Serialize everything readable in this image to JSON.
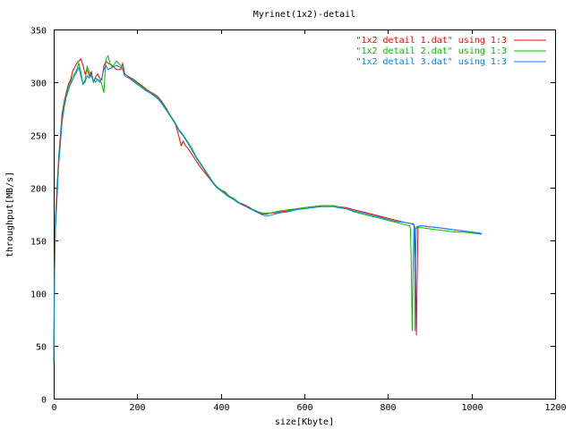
{
  "chart_data": {
    "type": "line",
    "title": "Myrinet(1x2)-detail",
    "xlabel": "size[Kbyte]",
    "ylabel": "throughput[MB/s]",
    "xlim": [
      0,
      1200
    ],
    "ylim": [
      0,
      350
    ],
    "xticks": [
      0,
      200,
      400,
      600,
      800,
      1000,
      1200
    ],
    "yticks": [
      0,
      50,
      100,
      150,
      200,
      250,
      300,
      350
    ],
    "grid": false,
    "legend_position": "top-right",
    "series": [
      {
        "name": "\"1x2 detail 1.dat\" using 1:3",
        "color": "#ff0000",
        "points": [
          [
            0,
            33
          ],
          [
            2,
            130
          ],
          [
            4,
            172
          ],
          [
            8,
            200
          ],
          [
            12,
            230
          ],
          [
            16,
            250
          ],
          [
            20,
            270
          ],
          [
            25,
            282
          ],
          [
            30,
            290
          ],
          [
            35,
            298
          ],
          [
            40,
            302
          ],
          [
            45,
            310
          ],
          [
            50,
            314
          ],
          [
            55,
            318
          ],
          [
            60,
            320
          ],
          [
            65,
            322
          ],
          [
            70,
            316
          ],
          [
            75,
            308
          ],
          [
            80,
            312
          ],
          [
            85,
            306
          ],
          [
            90,
            310
          ],
          [
            95,
            300
          ],
          [
            100,
            305
          ],
          [
            105,
            308
          ],
          [
            110,
            304
          ],
          [
            115,
            302
          ],
          [
            120,
            315
          ],
          [
            125,
            320
          ],
          [
            130,
            318
          ],
          [
            140,
            316
          ],
          [
            150,
            312
          ],
          [
            160,
            312
          ],
          [
            165,
            318
          ],
          [
            170,
            308
          ],
          [
            180,
            305
          ],
          [
            190,
            303
          ],
          [
            200,
            300
          ],
          [
            210,
            297
          ],
          [
            220,
            294
          ],
          [
            230,
            291
          ],
          [
            240,
            289
          ],
          [
            250,
            286
          ],
          [
            260,
            281
          ],
          [
            270,
            275
          ],
          [
            280,
            268
          ],
          [
            290,
            262
          ],
          [
            295,
            255
          ],
          [
            300,
            248
          ],
          [
            305,
            240
          ],
          [
            310,
            244
          ],
          [
            315,
            240
          ],
          [
            320,
            238
          ],
          [
            330,
            232
          ],
          [
            340,
            226
          ],
          [
            350,
            220
          ],
          [
            360,
            215
          ],
          [
            370,
            210
          ],
          [
            380,
            205
          ],
          [
            390,
            201
          ],
          [
            400,
            198
          ],
          [
            410,
            196
          ],
          [
            420,
            192
          ],
          [
            430,
            189
          ],
          [
            440,
            186
          ],
          [
            450,
            185
          ],
          [
            460,
            183
          ],
          [
            470,
            181
          ],
          [
            480,
            178
          ],
          [
            490,
            177
          ],
          [
            500,
            175
          ],
          [
            510,
            175
          ],
          [
            520,
            176
          ],
          [
            530,
            176
          ],
          [
            540,
            177
          ],
          [
            560,
            178
          ],
          [
            580,
            180
          ],
          [
            600,
            181
          ],
          [
            620,
            182
          ],
          [
            640,
            183
          ],
          [
            660,
            183
          ],
          [
            670,
            183
          ],
          [
            680,
            182
          ],
          [
            700,
            181
          ],
          [
            720,
            179
          ],
          [
            740,
            177
          ],
          [
            760,
            175
          ],
          [
            780,
            173
          ],
          [
            800,
            171
          ],
          [
            820,
            169
          ],
          [
            840,
            167
          ],
          [
            855,
            166
          ],
          [
            860,
            165
          ],
          [
            862,
            165
          ],
          [
            864,
            162
          ],
          [
            866,
            125
          ],
          [
            868,
            60
          ],
          [
            870,
            120
          ],
          [
            872,
            163
          ],
          [
            880,
            164
          ],
          [
            900,
            163
          ],
          [
            920,
            162
          ],
          [
            940,
            161
          ],
          [
            960,
            160
          ],
          [
            980,
            159
          ],
          [
            1000,
            158
          ],
          [
            1020,
            157
          ],
          [
            1025,
            156
          ]
        ]
      },
      {
        "name": "\"1x2 detail 2.dat\" using 1:3",
        "color": "#00c000",
        "points": [
          [
            0,
            33
          ],
          [
            2,
            120
          ],
          [
            4,
            165
          ],
          [
            8,
            195
          ],
          [
            12,
            225
          ],
          [
            16,
            245
          ],
          [
            20,
            265
          ],
          [
            25,
            280
          ],
          [
            30,
            288
          ],
          [
            35,
            295
          ],
          [
            40,
            300
          ],
          [
            45,
            305
          ],
          [
            50,
            308
          ],
          [
            55,
            312
          ],
          [
            60,
            318
          ],
          [
            65,
            310
          ],
          [
            70,
            298
          ],
          [
            75,
            302
          ],
          [
            80,
            315
          ],
          [
            85,
            310
          ],
          [
            90,
            305
          ],
          [
            95,
            302
          ],
          [
            100,
            300
          ],
          [
            105,
            303
          ],
          [
            110,
            302
          ],
          [
            115,
            298
          ],
          [
            120,
            290
          ],
          [
            125,
            322
          ],
          [
            130,
            325
          ],
          [
            135,
            318
          ],
          [
            140,
            314
          ],
          [
            150,
            320
          ],
          [
            160,
            316
          ],
          [
            165,
            314
          ],
          [
            170,
            306
          ],
          [
            180,
            304
          ],
          [
            190,
            302
          ],
          [
            200,
            299
          ],
          [
            210,
            296
          ],
          [
            220,
            293
          ],
          [
            230,
            290
          ],
          [
            240,
            288
          ],
          [
            250,
            285
          ],
          [
            260,
            280
          ],
          [
            270,
            274
          ],
          [
            280,
            268
          ],
          [
            290,
            262
          ],
          [
            300,
            255
          ],
          [
            310,
            250
          ],
          [
            320,
            244
          ],
          [
            330,
            238
          ],
          [
            340,
            230
          ],
          [
            350,
            224
          ],
          [
            360,
            218
          ],
          [
            370,
            212
          ],
          [
            380,
            206
          ],
          [
            390,
            201
          ],
          [
            400,
            198
          ],
          [
            410,
            195
          ],
          [
            420,
            192
          ],
          [
            430,
            190
          ],
          [
            440,
            187
          ],
          [
            450,
            184
          ],
          [
            460,
            182
          ],
          [
            470,
            180
          ],
          [
            480,
            179
          ],
          [
            490,
            177
          ],
          [
            500,
            176
          ],
          [
            510,
            176
          ],
          [
            520,
            176
          ],
          [
            530,
            177
          ],
          [
            540,
            178
          ],
          [
            560,
            179
          ],
          [
            580,
            180
          ],
          [
            600,
            181
          ],
          [
            620,
            182
          ],
          [
            640,
            183
          ],
          [
            660,
            183
          ],
          [
            670,
            183
          ],
          [
            680,
            182
          ],
          [
            700,
            180
          ],
          [
            720,
            177
          ],
          [
            740,
            175
          ],
          [
            760,
            173
          ],
          [
            780,
            171
          ],
          [
            800,
            169
          ],
          [
            820,
            167
          ],
          [
            840,
            165
          ],
          [
            850,
            164
          ],
          [
            852,
            164
          ],
          [
            854,
            160
          ],
          [
            856,
            120
          ],
          [
            858,
            64
          ],
          [
            860,
            118
          ],
          [
            862,
            160
          ],
          [
            870,
            162
          ],
          [
            880,
            162
          ],
          [
            900,
            161
          ],
          [
            920,
            160
          ],
          [
            940,
            159
          ],
          [
            960,
            158
          ],
          [
            980,
            158
          ],
          [
            1000,
            157
          ],
          [
            1020,
            156
          ],
          [
            1025,
            156
          ]
        ]
      },
      {
        "name": "\"1x2 detail 3.dat\" using 1:3",
        "color": "#0080ff",
        "points": [
          [
            0,
            33
          ],
          [
            2,
            115
          ],
          [
            4,
            160
          ],
          [
            8,
            190
          ],
          [
            12,
            222
          ],
          [
            16,
            242
          ],
          [
            20,
            262
          ],
          [
            25,
            276
          ],
          [
            30,
            286
          ],
          [
            35,
            292
          ],
          [
            40,
            298
          ],
          [
            45,
            302
          ],
          [
            50,
            306
          ],
          [
            55,
            310
          ],
          [
            60,
            314
          ],
          [
            65,
            306
          ],
          [
            70,
            298
          ],
          [
            75,
            300
          ],
          [
            80,
            306
          ],
          [
            85,
            304
          ],
          [
            90,
            308
          ],
          [
            95,
            300
          ],
          [
            100,
            304
          ],
          [
            105,
            302
          ],
          [
            110,
            300
          ],
          [
            115,
            304
          ],
          [
            120,
            312
          ],
          [
            125,
            316
          ],
          [
            130,
            312
          ],
          [
            140,
            314
          ],
          [
            150,
            316
          ],
          [
            160,
            314
          ],
          [
            165,
            312
          ],
          [
            170,
            306
          ],
          [
            180,
            304
          ],
          [
            190,
            301
          ],
          [
            200,
            298
          ],
          [
            210,
            295
          ],
          [
            220,
            292
          ],
          [
            230,
            290
          ],
          [
            240,
            287
          ],
          [
            250,
            284
          ],
          [
            260,
            279
          ],
          [
            270,
            273
          ],
          [
            280,
            267
          ],
          [
            290,
            261
          ],
          [
            300,
            254
          ],
          [
            310,
            249
          ],
          [
            320,
            243
          ],
          [
            330,
            236
          ],
          [
            340,
            229
          ],
          [
            350,
            223
          ],
          [
            360,
            217
          ],
          [
            370,
            211
          ],
          [
            380,
            205
          ],
          [
            390,
            200
          ],
          [
            400,
            197
          ],
          [
            410,
            194
          ],
          [
            420,
            191
          ],
          [
            430,
            189
          ],
          [
            440,
            186
          ],
          [
            450,
            184
          ],
          [
            460,
            182
          ],
          [
            470,
            180
          ],
          [
            480,
            178
          ],
          [
            490,
            176
          ],
          [
            500,
            174
          ],
          [
            510,
            173
          ],
          [
            520,
            174
          ],
          [
            530,
            175
          ],
          [
            540,
            176
          ],
          [
            560,
            177
          ],
          [
            580,
            179
          ],
          [
            600,
            180
          ],
          [
            620,
            181
          ],
          [
            640,
            182
          ],
          [
            660,
            182
          ],
          [
            670,
            182
          ],
          [
            680,
            181
          ],
          [
            700,
            180
          ],
          [
            720,
            178
          ],
          [
            740,
            176
          ],
          [
            760,
            174
          ],
          [
            780,
            172
          ],
          [
            800,
            170
          ],
          [
            820,
            168
          ],
          [
            840,
            167
          ],
          [
            855,
            166
          ],
          [
            860,
            166
          ],
          [
            862,
            165
          ],
          [
            864,
            135
          ],
          [
            865,
            64
          ],
          [
            866,
            130
          ],
          [
            868,
            163
          ],
          [
            880,
            164
          ],
          [
            900,
            163
          ],
          [
            920,
            162
          ],
          [
            940,
            161
          ],
          [
            960,
            160
          ],
          [
            980,
            159
          ],
          [
            1000,
            158
          ],
          [
            1020,
            157
          ],
          [
            1025,
            156
          ]
        ]
      }
    ]
  }
}
